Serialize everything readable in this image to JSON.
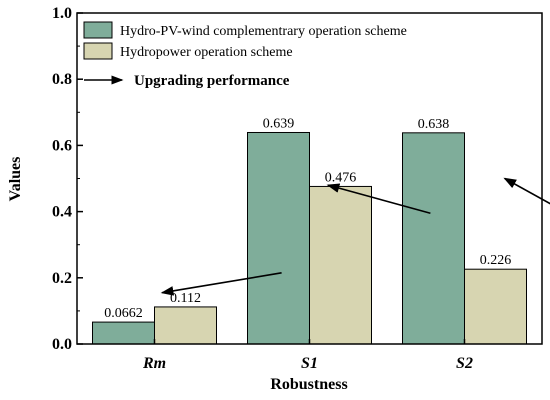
{
  "chart_data": {
    "type": "bar",
    "categories": [
      "Rm",
      "S1",
      "S2"
    ],
    "series": [
      {
        "name": "Hydro-PV-wind complementrary operation scheme",
        "values": [
          0.0662,
          0.639,
          0.638
        ],
        "color": "#7fad9a"
      },
      {
        "name": "Hydropower operation scheme",
        "values": [
          0.112,
          0.476,
          0.226
        ],
        "color": "#d7d5b1"
      }
    ],
    "data_labels": [
      [
        "0.0662",
        "0.639",
        "0.638"
      ],
      [
        "0.112",
        "0.476",
        "0.226"
      ]
    ],
    "xlabel": "Robustness",
    "ylabel": "Values",
    "ylim": [
      0,
      1.0
    ],
    "yticks": [
      "0.0",
      "0.2",
      "0.4",
      "0.6",
      "0.8",
      "1.0"
    ],
    "grid": false,
    "legend_position": "top-left",
    "annotation": "Upgrading performance",
    "arrows": [
      {
        "from": [
          0.82,
          0.215
        ],
        "to": [
          0.05,
          0.155
        ]
      },
      {
        "from": [
          1.78,
          0.395
        ],
        "to": [
          1.12,
          0.48
        ]
      },
      {
        "from": [
          2.78,
          0.365
        ],
        "to": [
          2.26,
          0.5
        ]
      }
    ]
  }
}
